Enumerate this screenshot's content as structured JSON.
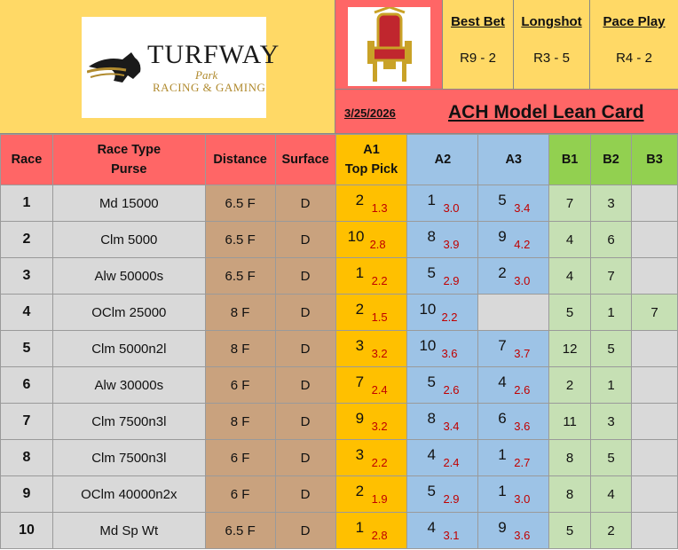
{
  "logo": {
    "line1": "TURFWAY",
    "line2": "Park",
    "line3": "RACING & GAMING"
  },
  "header": {
    "best_bet_label": "Best Bet",
    "best_bet_value": "R9 - 2",
    "longshot_label": "Longshot",
    "longshot_value": "R3 - 5",
    "pace_play_label": "Pace Play",
    "pace_play_value": "R4 - 2",
    "date": "3/25/2026",
    "title": "ACH Model Lean Card"
  },
  "columns": {
    "race": "Race",
    "race_type_1": "Race Type",
    "race_type_2": "Purse",
    "distance": "Distance",
    "surface": "Surface",
    "a1_1": "A1",
    "a1_2": "Top Pick",
    "a2": "A2",
    "a3": "A3",
    "b1": "B1",
    "b2": "B2",
    "b3": "B3"
  },
  "rows": [
    {
      "race": "1",
      "type": "Md 15000",
      "distance": "6.5 F",
      "surface": "D",
      "a1": "2",
      "a1_odds": "1.3",
      "a2": "1",
      "a2_odds": "3.0",
      "a3": "5",
      "a3_odds": "3.4",
      "b1": "7",
      "b2": "3",
      "b3": ""
    },
    {
      "race": "2",
      "type": "Clm 5000",
      "distance": "6.5 F",
      "surface": "D",
      "a1": "10",
      "a1_odds": "2.8",
      "a2": "8",
      "a2_odds": "3.9",
      "a3": "9",
      "a3_odds": "4.2",
      "b1": "4",
      "b2": "6",
      "b3": ""
    },
    {
      "race": "3",
      "type": "Alw 50000s",
      "distance": "6.5 F",
      "surface": "D",
      "a1": "1",
      "a1_odds": "2.2",
      "a2": "5",
      "a2_odds": "2.9",
      "a3": "2",
      "a3_odds": "3.0",
      "b1": "4",
      "b2": "7",
      "b3": ""
    },
    {
      "race": "4",
      "type": "OClm 25000",
      "distance": "8 F",
      "surface": "D",
      "a1": "2",
      "a1_odds": "1.5",
      "a2": "10",
      "a2_odds": "2.2",
      "a3": "",
      "a3_odds": "",
      "b1": "5",
      "b2": "1",
      "b3": "7"
    },
    {
      "race": "5",
      "type": "Clm 5000n2l",
      "distance": "8 F",
      "surface": "D",
      "a1": "3",
      "a1_odds": "3.2",
      "a2": "10",
      "a2_odds": "3.6",
      "a3": "7",
      "a3_odds": "3.7",
      "b1": "12",
      "b2": "5",
      "b3": ""
    },
    {
      "race": "6",
      "type": "Alw 30000s",
      "distance": "6 F",
      "surface": "D",
      "a1": "7",
      "a1_odds": "2.4",
      "a2": "5",
      "a2_odds": "2.6",
      "a3": "4",
      "a3_odds": "2.6",
      "b1": "2",
      "b2": "1",
      "b3": ""
    },
    {
      "race": "7",
      "type": "Clm 7500n3l",
      "distance": "8 F",
      "surface": "D",
      "a1": "9",
      "a1_odds": "3.2",
      "a2": "8",
      "a2_odds": "3.4",
      "a3": "6",
      "a3_odds": "3.6",
      "b1": "11",
      "b2": "3",
      "b3": ""
    },
    {
      "race": "8",
      "type": "Clm 7500n3l",
      "distance": "6 F",
      "surface": "D",
      "a1": "3",
      "a1_odds": "2.2",
      "a2": "4",
      "a2_odds": "2.4",
      "a3": "1",
      "a3_odds": "2.7",
      "b1": "8",
      "b2": "5",
      "b3": ""
    },
    {
      "race": "9",
      "type": "OClm 40000n2x",
      "distance": "6 F",
      "surface": "D",
      "a1": "2",
      "a1_odds": "1.9",
      "a2": "5",
      "a2_odds": "2.9",
      "a3": "1",
      "a3_odds": "3.0",
      "b1": "8",
      "b2": "4",
      "b3": ""
    },
    {
      "race": "10",
      "type": "Md Sp Wt",
      "distance": "6.5 F",
      "surface": "D",
      "a1": "1",
      "a1_odds": "2.8",
      "a2": "4",
      "a2_odds": "3.1",
      "a3": "9",
      "a3_odds": "3.6",
      "b1": "5",
      "b2": "2",
      "b3": ""
    }
  ]
}
